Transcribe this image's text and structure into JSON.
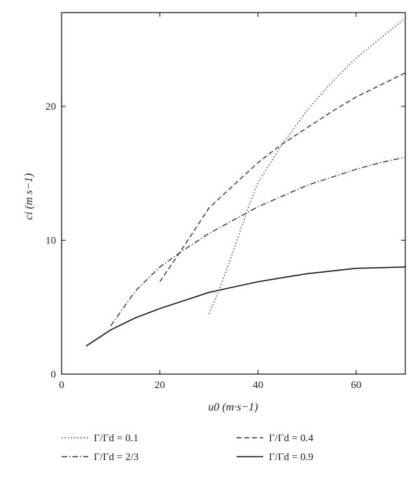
{
  "chart_data": {
    "type": "line",
    "title": "",
    "xlabel": "u0 (m·s−1)",
    "ylabel": "ci (m s−1)",
    "xlim": [
      0,
      70
    ],
    "ylim": [
      0,
      27
    ],
    "xticks": [
      0,
      20,
      40,
      60
    ],
    "yticks": [
      0,
      10,
      20
    ],
    "grid": false,
    "legend_position": "bottom",
    "series": [
      {
        "name": "Γ/Γd = 0.1",
        "style": "dotted",
        "color": "#333333",
        "x": [
          30,
          32,
          34,
          36,
          38,
          40,
          45,
          50,
          55,
          60,
          65,
          70
        ],
        "y": [
          4.5,
          6.2,
          8.2,
          10.3,
          12.4,
          14.3,
          17.2,
          19.7,
          21.8,
          23.6,
          25.1,
          26.6
        ]
      },
      {
        "name": "Γ/Γd = 0.4",
        "style": "dashed",
        "color": "#333333",
        "x": [
          20,
          25,
          30,
          35,
          40,
          45,
          50,
          55,
          60,
          65,
          70
        ],
        "y": [
          6.9,
          9.6,
          12.4,
          14.1,
          15.8,
          17.2,
          18.4,
          19.6,
          20.7,
          21.6,
          22.5
        ]
      },
      {
        "name": "Γ/Γd = 2/3",
        "style": "dashdot",
        "color": "#333333",
        "x": [
          10,
          15,
          20,
          25,
          30,
          35,
          40,
          45,
          50,
          55,
          60,
          65,
          70
        ],
        "y": [
          3.6,
          6.2,
          8.0,
          9.3,
          10.5,
          11.5,
          12.5,
          13.3,
          14.1,
          14.7,
          15.3,
          15.8,
          16.2
        ]
      },
      {
        "name": "Γ/Γd = 0.9",
        "style": "solid",
        "color": "#111111",
        "x": [
          5,
          10,
          15,
          20,
          25,
          30,
          35,
          40,
          45,
          50,
          55,
          60,
          65,
          70
        ],
        "y": [
          2.1,
          3.3,
          4.2,
          4.9,
          5.5,
          6.1,
          6.5,
          6.9,
          7.2,
          7.5,
          7.7,
          7.9,
          7.95,
          8.0
        ]
      }
    ]
  }
}
